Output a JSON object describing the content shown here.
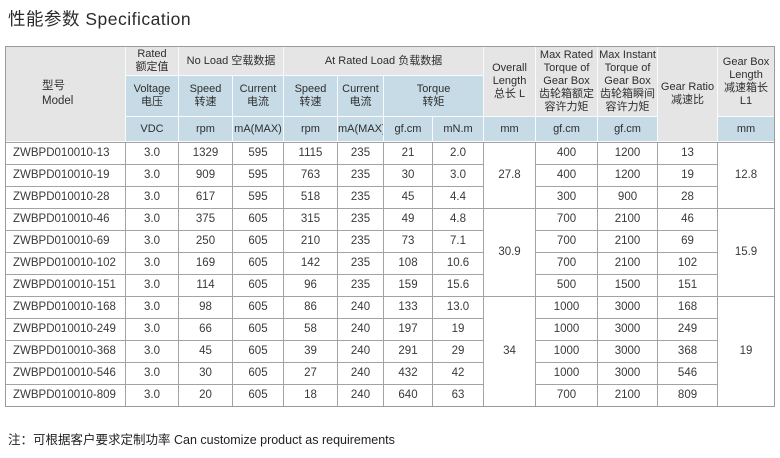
{
  "page": {
    "title": "性能参数 Specification",
    "footnote": "注：可根据客户要求定制功率 Can customize product as requirements"
  },
  "colors": {
    "header_gray": "#e5e5e5",
    "header_blue": "#c6dbe5",
    "grid_line": "#a3a3a3"
  },
  "table": {
    "header": {
      "model": "型号\nModel",
      "rated": "Rated\n额定值",
      "no_load": "No Load 空载数据",
      "at_rated_load": "At Rated Load 负载数据",
      "voltage": "Voltage\n电压",
      "speed": "Speed\n转速",
      "current": "Current\n电流",
      "torque": "Torque\n转矩",
      "overall_length": "Overall\nLength\n总长 L",
      "max_rated_torque": "Max Rated\nTorque of\nGear Box\n齿轮箱额定\n容许力矩",
      "max_instant_torque": "Max Instant\nTorque of\nGear Box\n齿轮箱瞬间\n容许力矩",
      "gear_ratio": "Gear Ratio\n减速比",
      "gear_box_length": "Gear Box\nLength\n减速箱长\nL1",
      "units": {
        "voltage": "VDC",
        "no_load_speed": "rpm",
        "no_load_current": "mA(MAX)",
        "rated_speed": "rpm",
        "rated_current": "mA(MAX)",
        "torque_gfcm": "gf.cm",
        "torque_mnm": "mN.m",
        "overall_length": "mm",
        "max_rated_torque": "gf.cm",
        "max_instant_torque": "gf.cm",
        "gear_box_length": "mm"
      }
    },
    "groups": [
      {
        "overall_length": "27.8",
        "gear_box_length": "12.8",
        "rows": [
          {
            "model": "ZWBPD010010-13",
            "voltage": "3.0",
            "no_load_speed": "1329",
            "no_load_current": "595",
            "rated_speed": "1115",
            "rated_current": "235",
            "torque_gfcm": "21",
            "torque_mnm": "2.0",
            "max_rated_torque": "400",
            "max_instant_torque": "1200",
            "gear_ratio": "13"
          },
          {
            "model": "ZWBPD010010-19",
            "voltage": "3.0",
            "no_load_speed": "909",
            "no_load_current": "595",
            "rated_speed": "763",
            "rated_current": "235",
            "torque_gfcm": "30",
            "torque_mnm": "3.0",
            "max_rated_torque": "400",
            "max_instant_torque": "1200",
            "gear_ratio": "19"
          },
          {
            "model": "ZWBPD010010-28",
            "voltage": "3.0",
            "no_load_speed": "617",
            "no_load_current": "595",
            "rated_speed": "518",
            "rated_current": "235",
            "torque_gfcm": "45",
            "torque_mnm": "4.4",
            "max_rated_torque": "300",
            "max_instant_torque": "900",
            "gear_ratio": "28"
          }
        ]
      },
      {
        "overall_length": "30.9",
        "gear_box_length": "15.9",
        "rows": [
          {
            "model": "ZWBPD010010-46",
            "voltage": "3.0",
            "no_load_speed": "375",
            "no_load_current": "605",
            "rated_speed": "315",
            "rated_current": "235",
            "torque_gfcm": "49",
            "torque_mnm": "4.8",
            "max_rated_torque": "700",
            "max_instant_torque": "2100",
            "gear_ratio": "46"
          },
          {
            "model": "ZWBPD010010-69",
            "voltage": "3.0",
            "no_load_speed": "250",
            "no_load_current": "605",
            "rated_speed": "210",
            "rated_current": "235",
            "torque_gfcm": "73",
            "torque_mnm": "7.1",
            "max_rated_torque": "700",
            "max_instant_torque": "2100",
            "gear_ratio": "69"
          },
          {
            "model": "ZWBPD010010-102",
            "voltage": "3.0",
            "no_load_speed": "169",
            "no_load_current": "605",
            "rated_speed": "142",
            "rated_current": "235",
            "torque_gfcm": "108",
            "torque_mnm": "10.6",
            "max_rated_torque": "700",
            "max_instant_torque": "2100",
            "gear_ratio": "102"
          },
          {
            "model": "ZWBPD010010-151",
            "voltage": "3.0",
            "no_load_speed": "114",
            "no_load_current": "605",
            "rated_speed": "96",
            "rated_current": "235",
            "torque_gfcm": "159",
            "torque_mnm": "15.6",
            "max_rated_torque": "500",
            "max_instant_torque": "1500",
            "gear_ratio": "151"
          }
        ]
      },
      {
        "overall_length": "34",
        "gear_box_length": "19",
        "rows": [
          {
            "model": "ZWBPD010010-168",
            "voltage": "3.0",
            "no_load_speed": "98",
            "no_load_current": "605",
            "rated_speed": "86",
            "rated_current": "240",
            "torque_gfcm": "133",
            "torque_mnm": "13.0",
            "max_rated_torque": "1000",
            "max_instant_torque": "3000",
            "gear_ratio": "168"
          },
          {
            "model": "ZWBPD010010-249",
            "voltage": "3.0",
            "no_load_speed": "66",
            "no_load_current": "605",
            "rated_speed": "58",
            "rated_current": "240",
            "torque_gfcm": "197",
            "torque_mnm": "19",
            "max_rated_torque": "1000",
            "max_instant_torque": "3000",
            "gear_ratio": "249"
          },
          {
            "model": "ZWBPD010010-368",
            "voltage": "3.0",
            "no_load_speed": "45",
            "no_load_current": "605",
            "rated_speed": "39",
            "rated_current": "240",
            "torque_gfcm": "291",
            "torque_mnm": "29",
            "max_rated_torque": "1000",
            "max_instant_torque": "3000",
            "gear_ratio": "368"
          },
          {
            "model": "ZWBPD010010-546",
            "voltage": "3.0",
            "no_load_speed": "30",
            "no_load_current": "605",
            "rated_speed": "27",
            "rated_current": "240",
            "torque_gfcm": "432",
            "torque_mnm": "42",
            "max_rated_torque": "1000",
            "max_instant_torque": "3000",
            "gear_ratio": "546"
          },
          {
            "model": "ZWBPD010010-809",
            "voltage": "3.0",
            "no_load_speed": "20",
            "no_load_current": "605",
            "rated_speed": "18",
            "rated_current": "240",
            "torque_gfcm": "640",
            "torque_mnm": "63",
            "max_rated_torque": "700",
            "max_instant_torque": "2100",
            "gear_ratio": "809"
          }
        ]
      }
    ]
  }
}
